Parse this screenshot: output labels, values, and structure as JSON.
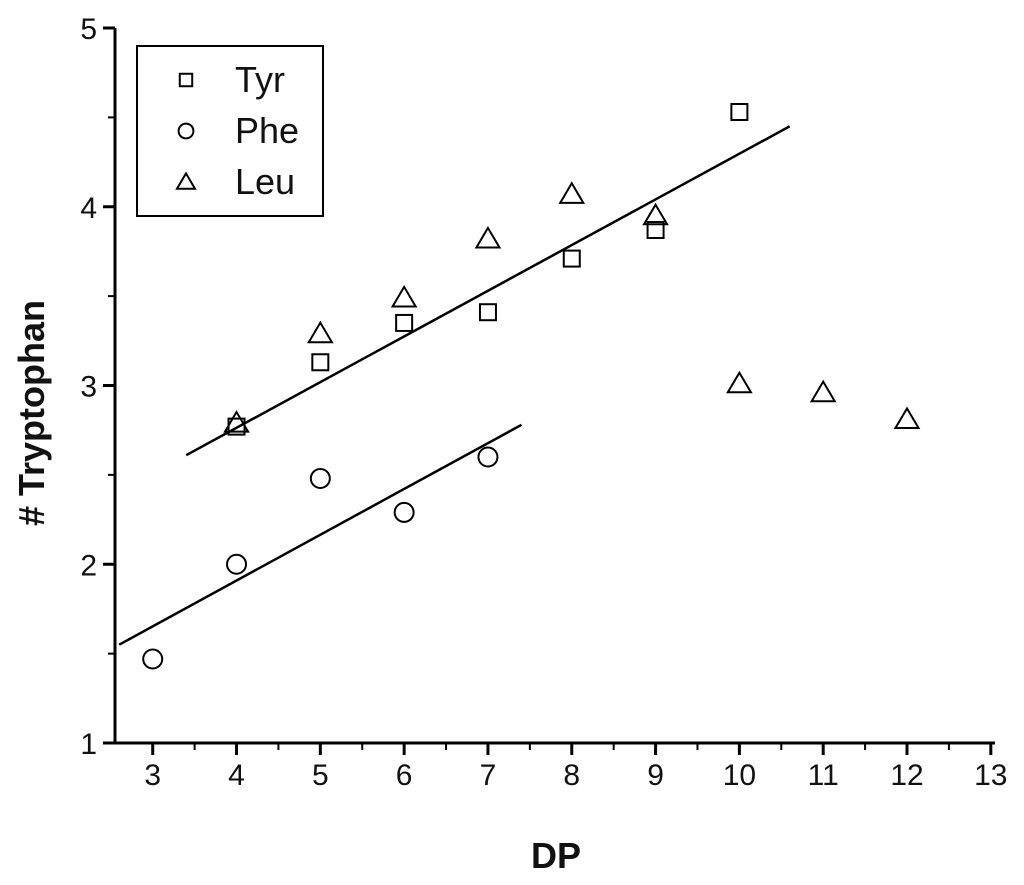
{
  "chart_data": {
    "type": "scatter",
    "title": "",
    "xlabel": "DP",
    "ylabel": "# Tryptophan",
    "xlim": [
      2.55,
      13.05
    ],
    "ylim": [
      1,
      5
    ],
    "x_ticks": [
      "3",
      "4",
      "5",
      "6",
      "7",
      "8",
      "9",
      "10",
      "11",
      "12",
      "13"
    ],
    "y_ticks": [
      "1",
      "2",
      "3",
      "4",
      "5"
    ],
    "legend_position": "top-left",
    "grid": false,
    "series": [
      {
        "name": "Tyr",
        "marker": "square",
        "points": [
          [
            4,
            2.77
          ],
          [
            5,
            3.13
          ],
          [
            6,
            3.35
          ],
          [
            7,
            3.41
          ],
          [
            8,
            3.71
          ],
          [
            9,
            3.87
          ],
          [
            10,
            4.53
          ]
        ]
      },
      {
        "name": "Phe",
        "marker": "circle",
        "points": [
          [
            3,
            1.47
          ],
          [
            4,
            2.0
          ],
          [
            5,
            2.48
          ],
          [
            6,
            2.29
          ],
          [
            7,
            2.6
          ]
        ]
      },
      {
        "name": "Leu",
        "marker": "triangle",
        "points": [
          [
            4,
            2.79
          ],
          [
            5,
            3.29
          ],
          [
            6,
            3.49
          ],
          [
            7,
            3.82
          ],
          [
            8,
            4.07
          ],
          [
            9,
            3.95
          ],
          [
            10,
            3.01
          ],
          [
            11,
            2.96
          ],
          [
            12,
            2.81
          ]
        ]
      }
    ],
    "fit_lines": [
      {
        "from": [
          3.4,
          2.61
        ],
        "to": [
          10.6,
          4.45
        ]
      },
      {
        "from": [
          2.6,
          1.55
        ],
        "to": [
          7.4,
          2.78
        ]
      }
    ]
  }
}
